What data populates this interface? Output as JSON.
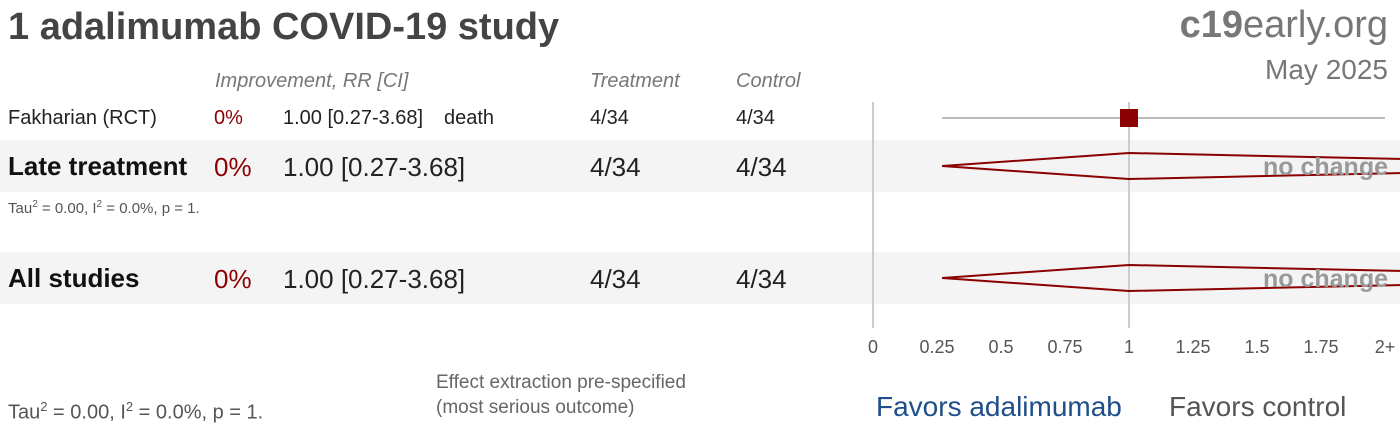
{
  "header": {
    "title": "1 adalimumab COVID-19 study",
    "brand_bold": "c19",
    "brand_rest": "early.org",
    "date": "May 2025"
  },
  "columns": {
    "improvement": "Improvement, RR [CI]",
    "treatment": "Treatment",
    "control": "Control"
  },
  "rows": [
    {
      "name": "Fakharian (RCT)",
      "improvement": "0%",
      "rr": "1.00 [0.27-3.68]",
      "outcome": "death",
      "treatment": "4/34",
      "control": "4/34"
    }
  ],
  "late_group": {
    "name": "Late treatment",
    "improvement": "0%",
    "rr": "1.00 [0.27-3.68]",
    "treatment": "4/34",
    "control": "4/34",
    "stats": {
      "tau_prefix": "Tau",
      "tau_sup": "2",
      "tau_val": " = 0.00, I",
      "i_sup": "2",
      "i_val": " = 0.0%, p = 1."
    }
  },
  "all_group": {
    "name": "All studies",
    "improvement": "0%",
    "rr": "1.00 [0.27-3.68]",
    "treatment": "4/34",
    "control": "4/34"
  },
  "footer": {
    "stats": {
      "tau_prefix": "Tau",
      "tau_sup": "2",
      "tau_val": " = 0.00, I",
      "i_sup": "2",
      "i_val": " = 0.0%, p = 1."
    },
    "note_line1": "Effect extraction pre-specified",
    "note_line2": "(most serious outcome)",
    "favors_left": "Favors adalimumab",
    "favors_right": "Favors control"
  },
  "chart_data": {
    "type": "forest",
    "x_ticks": [
      "0",
      "0.25",
      "0.5",
      "0.75",
      "1",
      "1.25",
      "1.5",
      "1.75",
      "2+"
    ],
    "xlim": [
      0,
      2
    ],
    "null_value": 1,
    "colors": {
      "effect": "#8b0000",
      "axis": "#cccccc",
      "ci": "#bbbbbb"
    },
    "studies": [
      {
        "label": "Fakharian (RCT)",
        "rr": 1.0,
        "ci_low": 0.27,
        "ci_high": 3.68
      }
    ],
    "pooled": [
      {
        "label": "Late treatment",
        "rr": 1.0,
        "ci_low": 0.27,
        "ci_high": 3.68,
        "annotation": "no change"
      },
      {
        "label": "All studies",
        "rr": 1.0,
        "ci_low": 0.27,
        "ci_high": 3.68,
        "annotation": "no change"
      }
    ]
  }
}
